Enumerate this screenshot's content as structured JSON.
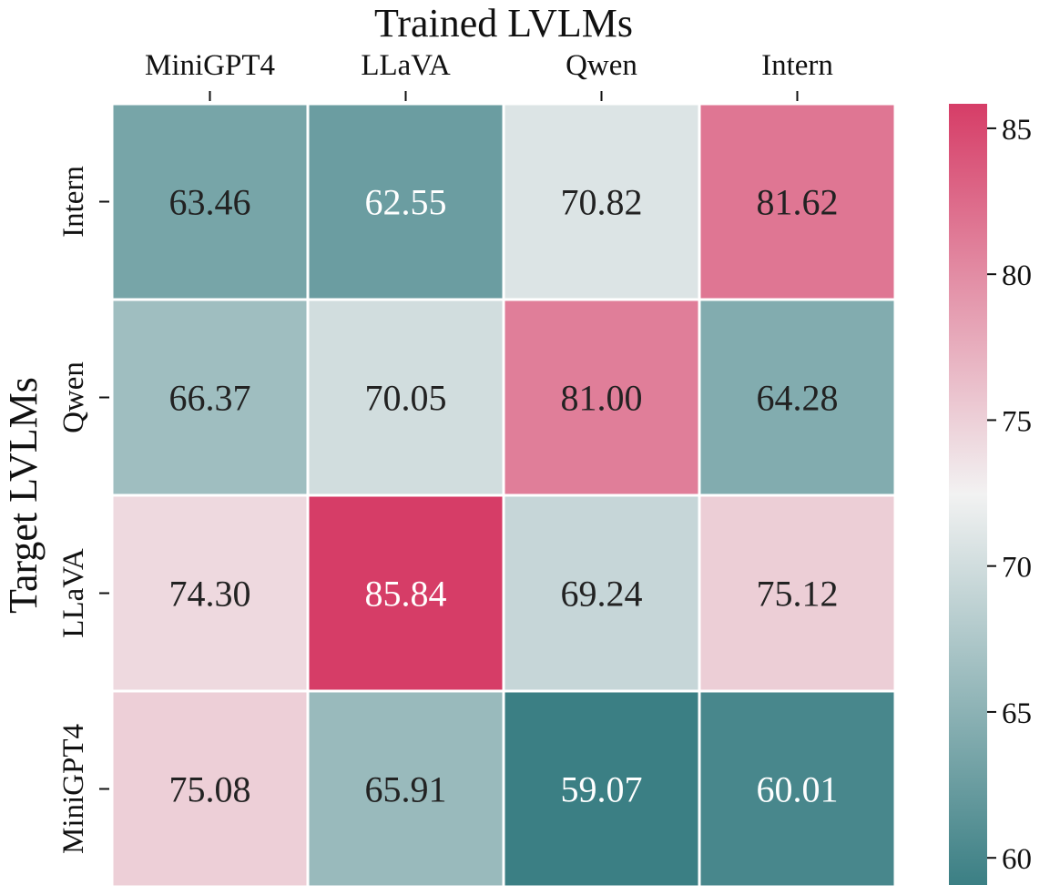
{
  "chart_data": {
    "type": "heatmap",
    "xlabel": "Trained LVLMs",
    "ylabel": "Target LVLMs",
    "x_categories": [
      "MiniGPT4",
      "LLaVA",
      "Qwen",
      "Intern"
    ],
    "y_categories": [
      "Intern",
      "Qwen",
      "LLaVA",
      "MiniGPT4"
    ],
    "values": [
      [
        63.46,
        62.55,
        70.82,
        81.62
      ],
      [
        66.37,
        70.05,
        81.0,
        64.28
      ],
      [
        74.3,
        85.84,
        69.24,
        75.12
      ],
      [
        75.08,
        65.91,
        59.07,
        60.01
      ]
    ],
    "value_labels": [
      [
        "63.46",
        "62.55",
        "70.82",
        "81.62"
      ],
      [
        "66.37",
        "70.05",
        "81.00",
        "64.28"
      ],
      [
        "74.30",
        "85.84",
        "69.24",
        "75.12"
      ],
      [
        "75.08",
        "65.91",
        "59.07",
        "60.01"
      ]
    ],
    "colorbar": {
      "vmin": 59.07,
      "vmax": 85.84,
      "ticks": [
        60,
        65,
        70,
        75,
        80,
        85
      ],
      "tick_labels": [
        "60",
        "65",
        "70",
        "75",
        "80",
        "85"
      ],
      "low_color": "#3b7f84",
      "mid_color": "#f2f2f2",
      "high_color": "#d63d67"
    },
    "xaxis_position": "top"
  }
}
